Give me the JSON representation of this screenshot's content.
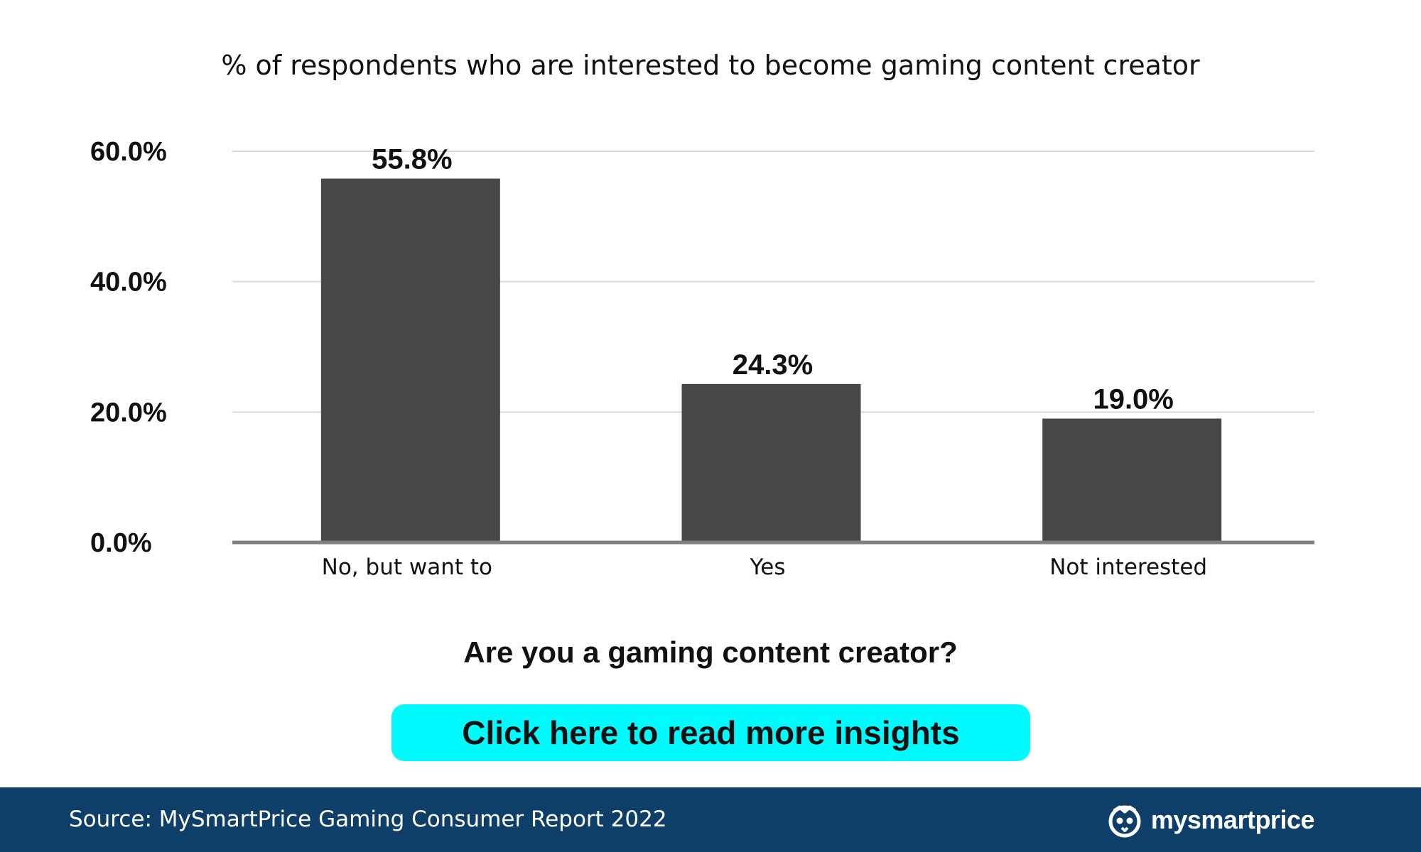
{
  "colors": {
    "bar": "#474747",
    "grid": "#d9d9d9",
    "axis": "#808080",
    "text": "#111111",
    "cta_background": "#00fbff",
    "footer_background": "#0e3f69",
    "footer_text": "#ffffff"
  },
  "chart_data": {
    "type": "bar",
    "title": "% of respondents who are interested to become gaming content creator",
    "xlabel": "Are you a gaming content creator?",
    "ylabel": "",
    "categories": [
      "No, but want to",
      "Yes",
      "Not interested"
    ],
    "values": [
      55.8,
      24.3,
      19.0
    ],
    "value_labels": [
      "55.8%",
      "24.3%",
      "19.0%"
    ],
    "ylim": [
      0,
      60
    ],
    "yticks": [
      0,
      20,
      40,
      60
    ],
    "ytick_labels": [
      "0.0%",
      "20.0%",
      "40.0%",
      "60.0%"
    ],
    "grid": true,
    "legend": "none"
  },
  "cta": {
    "label": "Click here to read more insights"
  },
  "footer": {
    "source": "Source: MySmartPrice Gaming Consumer Report 2022",
    "brand_name": "mysmartprice",
    "brand_icon": "owl-logo-icon"
  }
}
